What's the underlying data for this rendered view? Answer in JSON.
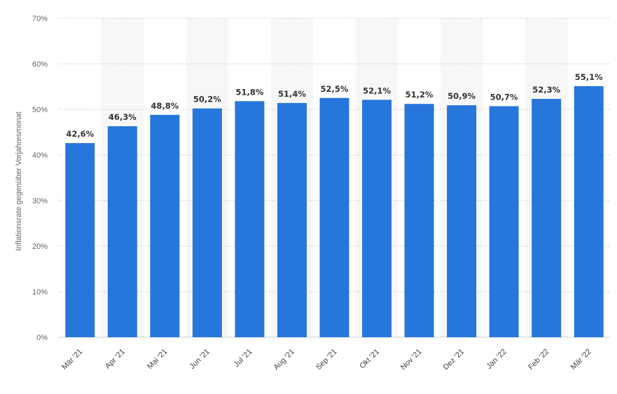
{
  "chart_data": {
    "type": "bar",
    "categories": [
      "Mär '21",
      "Apr '21",
      "Mai '21",
      "Jun '21",
      "Jul '21",
      "Aug '21",
      "Sep '21",
      "Okt '21",
      "Nov '21",
      "Dez '21",
      "Jan '22",
      "Feb '22",
      "Mär '22"
    ],
    "values": [
      42.6,
      46.3,
      48.8,
      50.2,
      51.8,
      51.4,
      52.5,
      52.1,
      51.2,
      50.9,
      50.7,
      52.3,
      55.1
    ],
    "data_labels": [
      "42,6%",
      "46,3%",
      "48,8%",
      "50,2%",
      "51,8%",
      "51,4%",
      "52,5%",
      "52,1%",
      "51,2%",
      "50,9%",
      "50,7%",
      "52,3%",
      "55,1%"
    ],
    "ylabel": "Inflationsrate gegenüber Vorjahresmonat",
    "xlabel": "",
    "ylim": [
      0,
      70
    ],
    "yticks": [
      0,
      10,
      20,
      30,
      40,
      50,
      60,
      70
    ],
    "ytick_labels": [
      "0%",
      "10%",
      "20%",
      "30%",
      "40%",
      "50%",
      "60%",
      "70%"
    ],
    "grid": true,
    "bar_color": "#2776dc",
    "alternate_band_color": "#f7f7f7",
    "grid_color": "#cccccc"
  }
}
